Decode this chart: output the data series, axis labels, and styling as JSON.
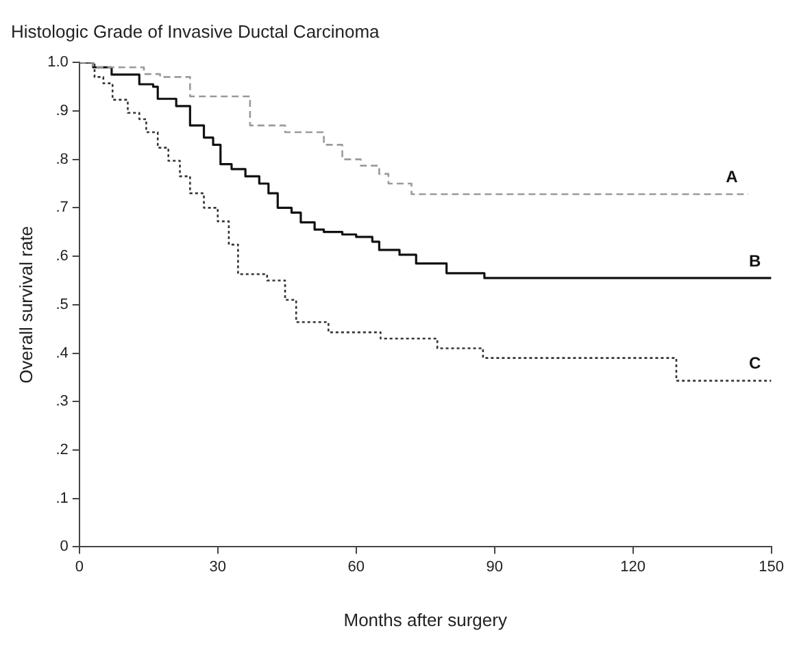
{
  "chart_data": {
    "type": "step",
    "title": "Histologic Grade of Invasive Ductal Carcinoma",
    "xlabel": "Months after surgery",
    "ylabel": "Overall survival rate",
    "xlim": [
      0,
      150
    ],
    "xticks": [
      0,
      30,
      60,
      90,
      120,
      150
    ],
    "ylim": [
      0,
      1
    ],
    "yticks": [
      {
        "value": 0,
        "label": "0"
      },
      {
        "value": 0.1,
        "label": ".1"
      },
      {
        "value": 0.2,
        "label": ".2"
      },
      {
        "value": 0.3,
        "label": ".3"
      },
      {
        "value": 0.4,
        "label": ".4"
      },
      {
        "value": 0.5,
        "label": ".5"
      },
      {
        "value": 0.6,
        "label": ".6"
      },
      {
        "value": 0.7,
        "label": ".7"
      },
      {
        "value": 0.8,
        "label": ".8"
      },
      {
        "value": 0.9,
        "label": ".9"
      },
      {
        "value": 1,
        "label": "1.0"
      }
    ],
    "grid": false,
    "legend": false,
    "marker": "none",
    "series": [
      {
        "name": "A",
        "color": "#9a9a9a",
        "line_style": "dashed",
        "x": [
          0,
          3,
          14,
          17.5,
          24,
          37,
          44.6,
          53,
          57,
          61,
          65,
          67,
          72,
          145
        ],
        "values": [
          1,
          0.99,
          0.976,
          0.97,
          0.93,
          0.87,
          0.856,
          0.83,
          0.8,
          0.787,
          0.77,
          0.75,
          0.728,
          0.728
        ]
      },
      {
        "name": "B",
        "color": "#111111",
        "line_style": "solid",
        "x": [
          0,
          3,
          7,
          13,
          16,
          17,
          21,
          24,
          27,
          29,
          30.6,
          33,
          36,
          39,
          41,
          43,
          46,
          48,
          51,
          53,
          57,
          60,
          63.5,
          65,
          69.4,
          73,
          79.6,
          87.8,
          150
        ],
        "values": [
          1,
          0.99,
          0.975,
          0.955,
          0.95,
          0.925,
          0.91,
          0.87,
          0.845,
          0.83,
          0.79,
          0.78,
          0.765,
          0.75,
          0.73,
          0.7,
          0.69,
          0.67,
          0.655,
          0.65,
          0.645,
          0.64,
          0.63,
          0.613,
          0.603,
          0.585,
          0.565,
          0.555,
          0.555
        ]
      },
      {
        "name": "C",
        "color": "#333333",
        "line_style": "dotted",
        "x": [
          0,
          3.3,
          5.2,
          7.2,
          10.5,
          13,
          14.5,
          17,
          19.3,
          21.8,
          24,
          27,
          30,
          32.4,
          34.4,
          40.7,
          44.6,
          47,
          54,
          65.3,
          77.6,
          87.5,
          129.4,
          150
        ],
        "values": [
          1,
          0.97,
          0.957,
          0.923,
          0.896,
          0.883,
          0.856,
          0.824,
          0.797,
          0.765,
          0.73,
          0.7,
          0.672,
          0.624,
          0.563,
          0.55,
          0.51,
          0.464,
          0.443,
          0.43,
          0.41,
          0.39,
          0.343,
          0.343
        ]
      }
    ]
  }
}
